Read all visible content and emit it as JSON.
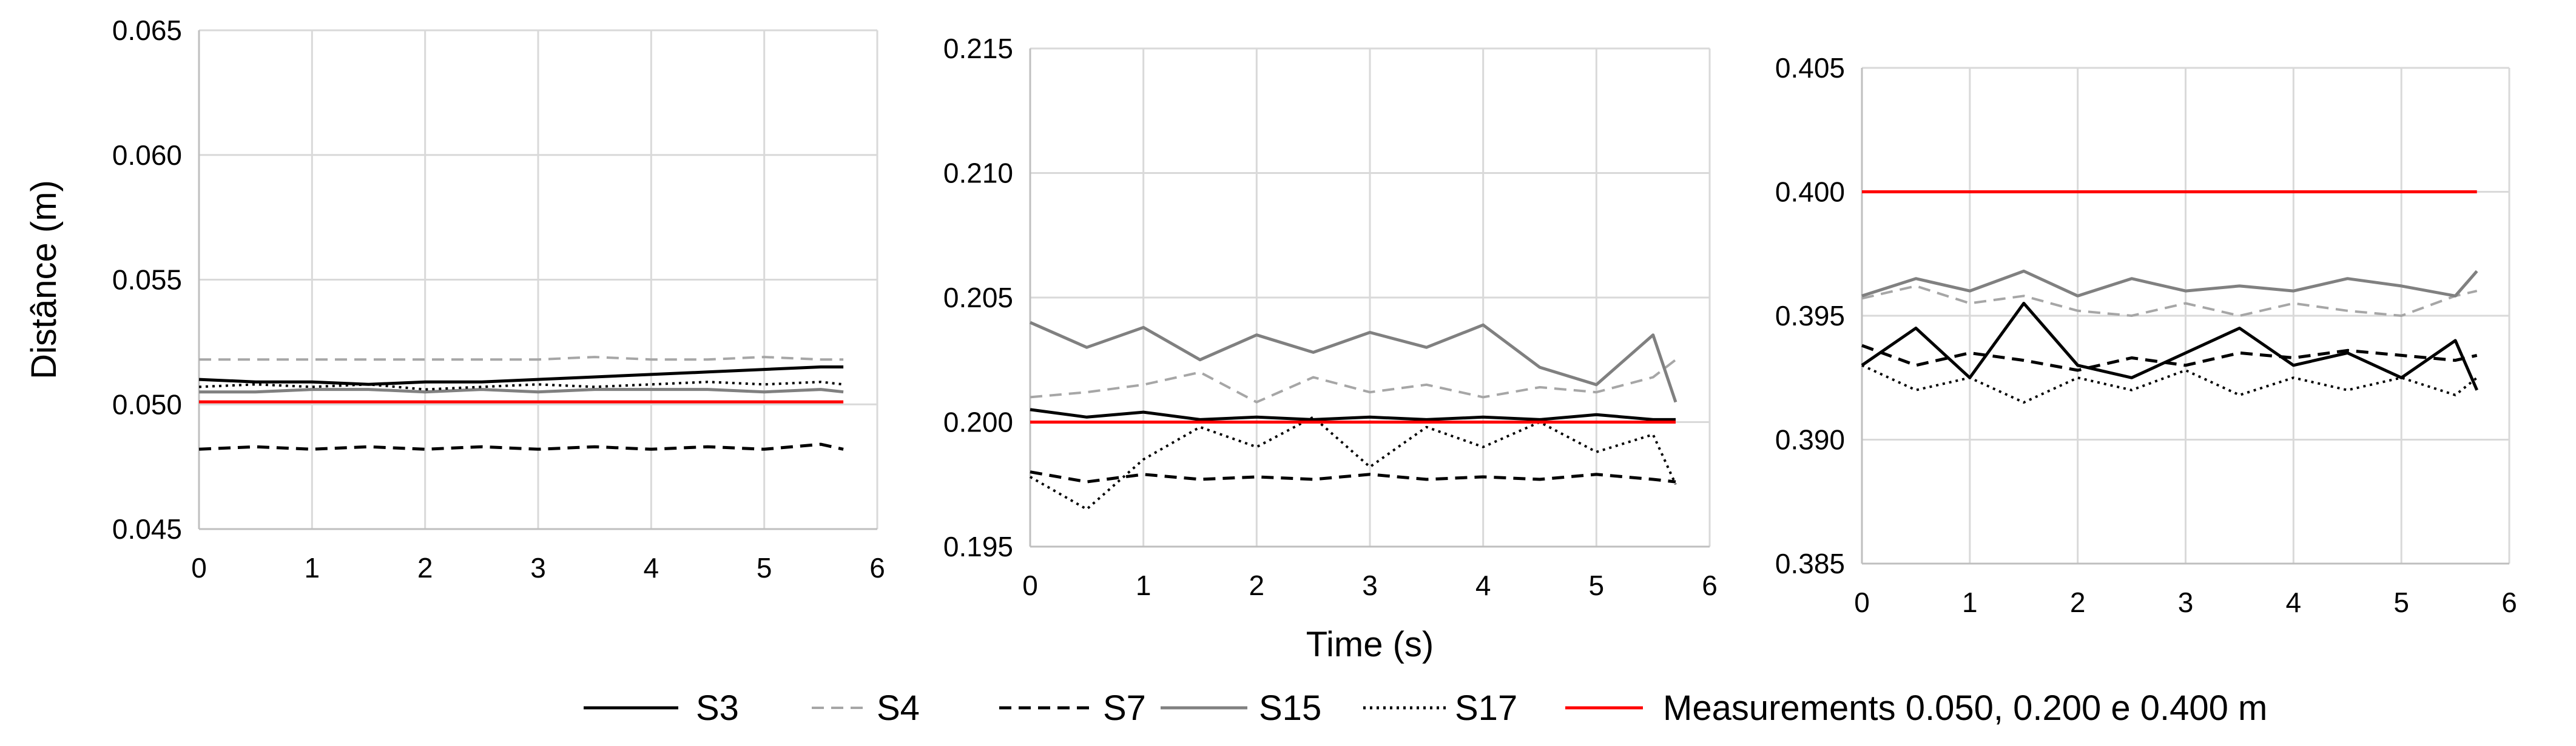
{
  "chart_data": [
    {
      "type": "line",
      "ylabel": "Distânce (m)",
      "xlabel": "",
      "xlim": [
        0,
        6
      ],
      "ylim": [
        0.045,
        0.065
      ],
      "x_ticks": [
        "0",
        "1",
        "2",
        "3",
        "4",
        "5",
        "6"
      ],
      "y_ticks": [
        "0.045",
        "0.050",
        "0.055",
        "0.060",
        "0.065"
      ],
      "grid": true,
      "series": [
        {
          "name": "S3",
          "x": [
            0,
            0.5,
            1,
            1.5,
            2,
            2.5,
            3,
            3.5,
            4,
            4.5,
            5,
            5.5,
            5.7
          ],
          "values": [
            0.051,
            0.0509,
            0.0509,
            0.0508,
            0.0509,
            0.0509,
            0.051,
            0.0511,
            0.0512,
            0.0513,
            0.0514,
            0.0515,
            0.0515
          ]
        },
        {
          "name": "S4",
          "x": [
            0,
            0.5,
            1,
            1.5,
            2,
            2.5,
            3,
            3.5,
            4,
            4.5,
            5,
            5.5,
            5.7
          ],
          "values": [
            0.0518,
            0.0518,
            0.0518,
            0.0518,
            0.0518,
            0.0518,
            0.0518,
            0.0519,
            0.0518,
            0.0518,
            0.0519,
            0.0518,
            0.0518
          ]
        },
        {
          "name": "S7",
          "x": [
            0,
            0.5,
            1,
            1.5,
            2,
            2.5,
            3,
            3.5,
            4,
            4.5,
            5,
            5.5,
            5.7
          ],
          "values": [
            0.0482,
            0.0483,
            0.0482,
            0.0483,
            0.0482,
            0.0483,
            0.0482,
            0.0483,
            0.0482,
            0.0483,
            0.0482,
            0.0484,
            0.0482
          ]
        },
        {
          "name": "S15",
          "x": [
            0,
            0.5,
            1,
            1.5,
            2,
            2.5,
            3,
            3.5,
            4,
            4.5,
            5,
            5.5,
            5.7
          ],
          "values": [
            0.0505,
            0.0505,
            0.0506,
            0.0506,
            0.0505,
            0.0506,
            0.0505,
            0.0506,
            0.0506,
            0.0506,
            0.0505,
            0.0506,
            0.0505
          ]
        },
        {
          "name": "S17",
          "x": [
            0,
            0.5,
            1,
            1.5,
            2,
            2.5,
            3,
            3.5,
            4,
            4.5,
            5,
            5.5,
            5.7
          ],
          "values": [
            0.0507,
            0.0508,
            0.0507,
            0.0508,
            0.0506,
            0.0507,
            0.0508,
            0.0507,
            0.0508,
            0.0509,
            0.0508,
            0.0509,
            0.0508
          ]
        },
        {
          "name": "Measurements 0.050, 0.200 e 0.400 m",
          "x": [
            0,
            5.7
          ],
          "values": [
            0.0501,
            0.0501
          ]
        }
      ]
    },
    {
      "type": "line",
      "ylabel": "",
      "xlabel": "Time (s)",
      "xlim": [
        0,
        6
      ],
      "ylim": [
        0.195,
        0.215
      ],
      "x_ticks": [
        "0",
        "1",
        "2",
        "3",
        "4",
        "5",
        "6"
      ],
      "y_ticks": [
        "0.195",
        "0.200",
        "0.205",
        "0.210",
        "0.215"
      ],
      "grid": true,
      "series": [
        {
          "name": "S3",
          "x": [
            0,
            0.5,
            1,
            1.5,
            2,
            2.5,
            3,
            3.5,
            4,
            4.5,
            5,
            5.5,
            5.7
          ],
          "values": [
            0.2005,
            0.2002,
            0.2004,
            0.2001,
            0.2002,
            0.2001,
            0.2002,
            0.2001,
            0.2002,
            0.2001,
            0.2003,
            0.2001,
            0.2001
          ]
        },
        {
          "name": "S4",
          "x": [
            0,
            0.5,
            1,
            1.5,
            2,
            2.5,
            3,
            3.5,
            4,
            4.5,
            5,
            5.5,
            5.7
          ],
          "values": [
            0.201,
            0.2012,
            0.2015,
            0.202,
            0.2008,
            0.2018,
            0.2012,
            0.2015,
            0.201,
            0.2014,
            0.2012,
            0.2018,
            0.2025
          ]
        },
        {
          "name": "S7",
          "x": [
            0,
            0.5,
            1,
            1.5,
            2,
            2.5,
            3,
            3.5,
            4,
            4.5,
            5,
            5.5,
            5.7
          ],
          "values": [
            0.198,
            0.1976,
            0.1979,
            0.1977,
            0.1978,
            0.1977,
            0.1979,
            0.1977,
            0.1978,
            0.1977,
            0.1979,
            0.1977,
            0.1976
          ]
        },
        {
          "name": "S15",
          "x": [
            0,
            0.5,
            1,
            1.5,
            2,
            2.5,
            3,
            3.5,
            4,
            4.5,
            5,
            5.5,
            5.7
          ],
          "values": [
            0.204,
            0.203,
            0.2038,
            0.2025,
            0.2035,
            0.2028,
            0.2036,
            0.203,
            0.2039,
            0.2022,
            0.2015,
            0.2035,
            0.2008
          ]
        },
        {
          "name": "S17",
          "x": [
            0,
            0.5,
            1,
            1.5,
            2,
            2.5,
            3,
            3.5,
            4,
            4.5,
            5,
            5.5,
            5.7
          ],
          "values": [
            0.1978,
            0.1965,
            0.1985,
            0.1998,
            0.199,
            0.2002,
            0.1982,
            0.1998,
            0.199,
            0.2,
            0.1988,
            0.1995,
            0.1975
          ]
        },
        {
          "name": "Measurements 0.050, 0.200 e 0.400 m",
          "x": [
            0,
            5.7
          ],
          "values": [
            0.2,
            0.2
          ]
        }
      ]
    },
    {
      "type": "line",
      "ylabel": "",
      "xlabel": "",
      "xlim": [
        0,
        6
      ],
      "ylim": [
        0.385,
        0.405
      ],
      "x_ticks": [
        "0",
        "1",
        "2",
        "3",
        "4",
        "5",
        "6"
      ],
      "y_ticks": [
        "0.385",
        "0.390",
        "0.395",
        "0.400",
        "0.405"
      ],
      "grid": true,
      "series": [
        {
          "name": "S3",
          "x": [
            0,
            0.5,
            1,
            1.5,
            2,
            2.5,
            3,
            3.5,
            4,
            4.5,
            5,
            5.5,
            5.7
          ],
          "values": [
            0.393,
            0.3945,
            0.3925,
            0.3955,
            0.393,
            0.3925,
            0.3935,
            0.3945,
            0.393,
            0.3935,
            0.3925,
            0.394,
            0.392
          ]
        },
        {
          "name": "S4",
          "x": [
            0,
            0.5,
            1,
            1.5,
            2,
            2.5,
            3,
            3.5,
            4,
            4.5,
            5,
            5.5,
            5.7
          ],
          "values": [
            0.3957,
            0.3962,
            0.3955,
            0.3958,
            0.3952,
            0.395,
            0.3955,
            0.395,
            0.3955,
            0.3952,
            0.395,
            0.3958,
            0.396
          ]
        },
        {
          "name": "S7",
          "x": [
            0,
            0.5,
            1,
            1.5,
            2,
            2.5,
            3,
            3.5,
            4,
            4.5,
            5,
            5.5,
            5.7
          ],
          "values": [
            0.3938,
            0.393,
            0.3935,
            0.3932,
            0.3928,
            0.3933,
            0.393,
            0.3935,
            0.3933,
            0.3936,
            0.3934,
            0.3932,
            0.3934
          ]
        },
        {
          "name": "S15",
          "x": [
            0,
            0.5,
            1,
            1.5,
            2,
            2.5,
            3,
            3.5,
            4,
            4.5,
            5,
            5.5,
            5.7
          ],
          "values": [
            0.3958,
            0.3965,
            0.396,
            0.3968,
            0.3958,
            0.3965,
            0.396,
            0.3962,
            0.396,
            0.3965,
            0.3962,
            0.3958,
            0.3968
          ]
        },
        {
          "name": "S17",
          "x": [
            0,
            0.5,
            1,
            1.5,
            2,
            2.5,
            3,
            3.5,
            4,
            4.5,
            5,
            5.5,
            5.7
          ],
          "values": [
            0.393,
            0.392,
            0.3925,
            0.3915,
            0.3925,
            0.392,
            0.3928,
            0.3918,
            0.3925,
            0.392,
            0.3925,
            0.3918,
            0.3925
          ]
        },
        {
          "name": "Measurements 0.050, 0.200 e 0.400 m",
          "x": [
            0,
            5.7
          ],
          "values": [
            0.4,
            0.4
          ]
        }
      ]
    }
  ],
  "legend": {
    "placement": "bottom",
    "items": [
      {
        "label": "S3",
        "color": "#000000",
        "dash": "solid"
      },
      {
        "label": "S4",
        "color": "#a6a6a6",
        "dash": "dashed"
      },
      {
        "label": "S7",
        "color": "#000000",
        "dash": "dashed"
      },
      {
        "label": "S15",
        "color": "#808080",
        "dash": "solid"
      },
      {
        "label": "S17",
        "color": "#000000",
        "dash": "dotted"
      },
      {
        "label": "Measurements 0.050, 0.200 e 0.400 m",
        "color": "#ff0000",
        "dash": "solid"
      }
    ]
  },
  "colors": {
    "grid": "#d9d9d9",
    "axis": "#bfbfbf"
  }
}
